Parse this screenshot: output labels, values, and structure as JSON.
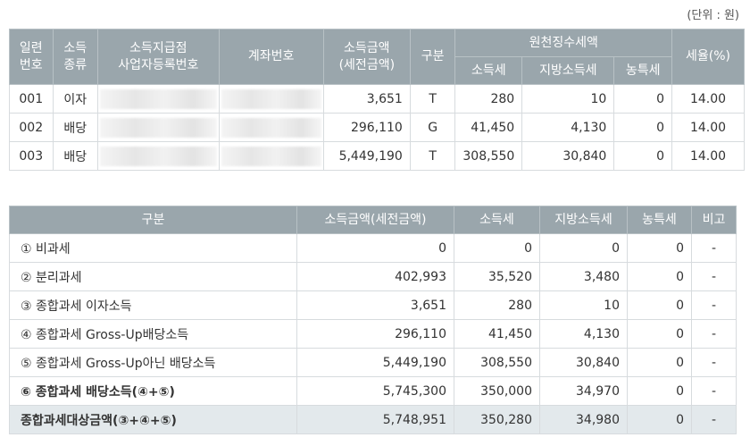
{
  "unit_label": "(단위 : 원)",
  "detail_table": {
    "headers": {
      "seq": "일련\n번호",
      "income_type": "소득\n종류",
      "payer": "소득지급점\n사업자등록번호",
      "account": "계좌번호",
      "income_amount": "소득금액\n(세전금액)",
      "category": "구분",
      "withholding_group": "원천징수세액",
      "income_tax": "소득세",
      "local_tax": "지방소득세",
      "rural_tax": "농특세",
      "tax_rate": "세율(%)"
    },
    "rows": [
      {
        "seq": "001",
        "income_type": "이자",
        "income_amount": "3,651",
        "category": "T",
        "income_tax": "280",
        "local_tax": "10",
        "rural_tax": "0",
        "tax_rate": "14.00"
      },
      {
        "seq": "002",
        "income_type": "배당",
        "income_amount": "296,110",
        "category": "G",
        "income_tax": "41,450",
        "local_tax": "4,130",
        "rural_tax": "0",
        "tax_rate": "14.00"
      },
      {
        "seq": "003",
        "income_type": "배당",
        "income_amount": "5,449,190",
        "category": "T",
        "income_tax": "308,550",
        "local_tax": "30,840",
        "rural_tax": "0",
        "tax_rate": "14.00"
      }
    ]
  },
  "summary_table": {
    "headers": {
      "category": "구분",
      "income_amount": "소득금액(세전금액)",
      "income_tax": "소득세",
      "local_tax": "지방소득세",
      "rural_tax": "농특세",
      "note": "비고"
    },
    "rows": [
      {
        "label": "① 비과세",
        "income_amount": "0",
        "income_tax": "0",
        "local_tax": "0",
        "rural_tax": "0",
        "note": "-"
      },
      {
        "label": "② 분리과세",
        "income_amount": "402,993",
        "income_tax": "35,520",
        "local_tax": "3,480",
        "rural_tax": "0",
        "note": "-"
      },
      {
        "label": "③ 종합과세 이자소득",
        "income_amount": "3,651",
        "income_tax": "280",
        "local_tax": "10",
        "rural_tax": "0",
        "note": "-"
      },
      {
        "label": "④ 종합과세 Gross-Up배당소득",
        "income_amount": "296,110",
        "income_tax": "41,450",
        "local_tax": "4,130",
        "rural_tax": "0",
        "note": "-"
      },
      {
        "label": "⑤ 종합과세 Gross-Up아닌 배당소득",
        "income_amount": "5,449,190",
        "income_tax": "308,550",
        "local_tax": "30,840",
        "rural_tax": "0",
        "note": "-"
      },
      {
        "label": "⑥ 종합과세 배당소득(④+⑤)",
        "income_amount": "5,745,300",
        "income_tax": "350,000",
        "local_tax": "34,970",
        "rural_tax": "0",
        "note": "-"
      }
    ],
    "total_row": {
      "label": "종합과세대상금액(③+④+⑤)",
      "income_amount": "5,748,951",
      "income_tax": "350,280",
      "local_tax": "34,980",
      "rural_tax": "0",
      "note": "-"
    }
  }
}
